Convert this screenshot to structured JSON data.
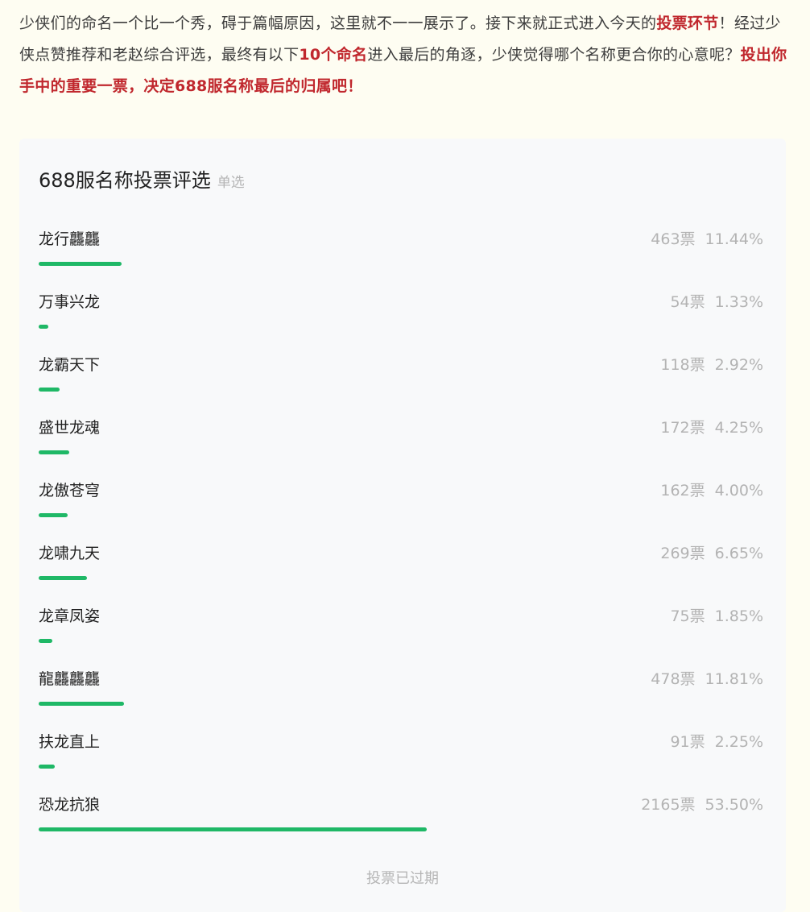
{
  "intro": [
    {
      "text": "少侠们的命名一个比一个秀，碍于篇幅原因，这里就不一一展示了。接下来就正式进入今天的",
      "highlight": false
    },
    {
      "text": "投票环节",
      "highlight": true
    },
    {
      "text": "！经过少侠点赞推荐和老赵综合评选，最终有以下",
      "highlight": false
    },
    {
      "text": "10个命名",
      "highlight": true
    },
    {
      "text": "进入最后的角逐，少侠觉得哪个名称更合你的心意呢？",
      "highlight": false
    },
    {
      "text": "投出你手中的重要一票，决定688服名称最后的归属吧！",
      "highlight": true
    }
  ],
  "poll": {
    "title": "688服名称投票评选",
    "type_label": "单选",
    "accent": "#1fb866",
    "options": [
      {
        "name": "龙行龘龘",
        "votes": "463票",
        "percent": "11.44%",
        "value": 11.44
      },
      {
        "name": "万事兴龙",
        "votes": "54票",
        "percent": "1.33%",
        "value": 1.33
      },
      {
        "name": "龙霸天下",
        "votes": "118票",
        "percent": "2.92%",
        "value": 2.92
      },
      {
        "name": "盛世龙魂",
        "votes": "172票",
        "percent": "4.25%",
        "value": 4.25
      },
      {
        "name": "龙傲苍穹",
        "votes": "162票",
        "percent": "4.00%",
        "value": 4.0
      },
      {
        "name": "龙啸九天",
        "votes": "269票",
        "percent": "6.65%",
        "value": 6.65
      },
      {
        "name": "龙章凤姿",
        "votes": "75票",
        "percent": "1.85%",
        "value": 1.85
      },
      {
        "name": "龍龘龘龘",
        "votes": "478票",
        "percent": "11.81%",
        "value": 11.81
      },
      {
        "name": "扶龙直上",
        "votes": "91票",
        "percent": "2.25%",
        "value": 2.25
      },
      {
        "name": "恐龙抗狼",
        "votes": "2165票",
        "percent": "53.50%",
        "value": 53.5
      }
    ],
    "footer": "投票已过期"
  }
}
